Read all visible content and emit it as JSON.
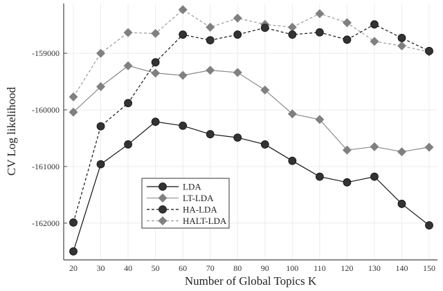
{
  "chart_data": {
    "type": "line",
    "title": "",
    "xlabel": "Number of Global Topics K",
    "ylabel": "CV Log likelihood",
    "x": [
      20,
      30,
      40,
      50,
      60,
      70,
      80,
      90,
      100,
      110,
      120,
      130,
      140,
      150
    ],
    "xticks": [
      "20",
      "30",
      "40",
      "50",
      "60",
      "70",
      "80",
      "90",
      "100",
      "110",
      "120",
      "130",
      "140",
      "150"
    ],
    "yticks": [
      -159000,
      -160000,
      -161000,
      -162000
    ],
    "ytick_labels": [
      "-159000",
      "-160000",
      "-161000",
      "-162000"
    ],
    "xlim": [
      17,
      152
    ],
    "ylim": [
      -162650,
      -158120
    ],
    "grid": true,
    "legend_position": "lower-left-center",
    "series": [
      {
        "name": "LDA",
        "marker": "circle",
        "dash": "solid",
        "color": "#333333",
        "values": [
          -162500,
          -160960,
          -160610,
          -160210,
          -160280,
          -160430,
          -160490,
          -160610,
          -160900,
          -161180,
          -161280,
          -161180,
          -161660,
          -162040
        ]
      },
      {
        "name": "LT-LDA",
        "marker": "diamond",
        "dash": "solid",
        "color": "#808080",
        "values": [
          -160040,
          -159590,
          -159220,
          -159350,
          -159390,
          -159300,
          -159340,
          -159650,
          -160070,
          -160170,
          -160710,
          -160650,
          -160740,
          -160660
        ]
      },
      {
        "name": "HA-LDA",
        "marker": "circle",
        "dash": "dashed",
        "color": "#333333",
        "values": [
          -161990,
          -160290,
          -159880,
          -159160,
          -158670,
          -158770,
          -158670,
          -158550,
          -158670,
          -158630,
          -158760,
          -158490,
          -158730,
          -158960
        ]
      },
      {
        "name": "HALT-LDA",
        "marker": "diamond",
        "dash": "dashed",
        "color": "#808080",
        "values": [
          -159770,
          -159000,
          -158635,
          -158650,
          -158230,
          -158540,
          -158380,
          -158490,
          -158540,
          -158300,
          -158460,
          -158790,
          -158870,
          -158975
        ]
      }
    ]
  }
}
